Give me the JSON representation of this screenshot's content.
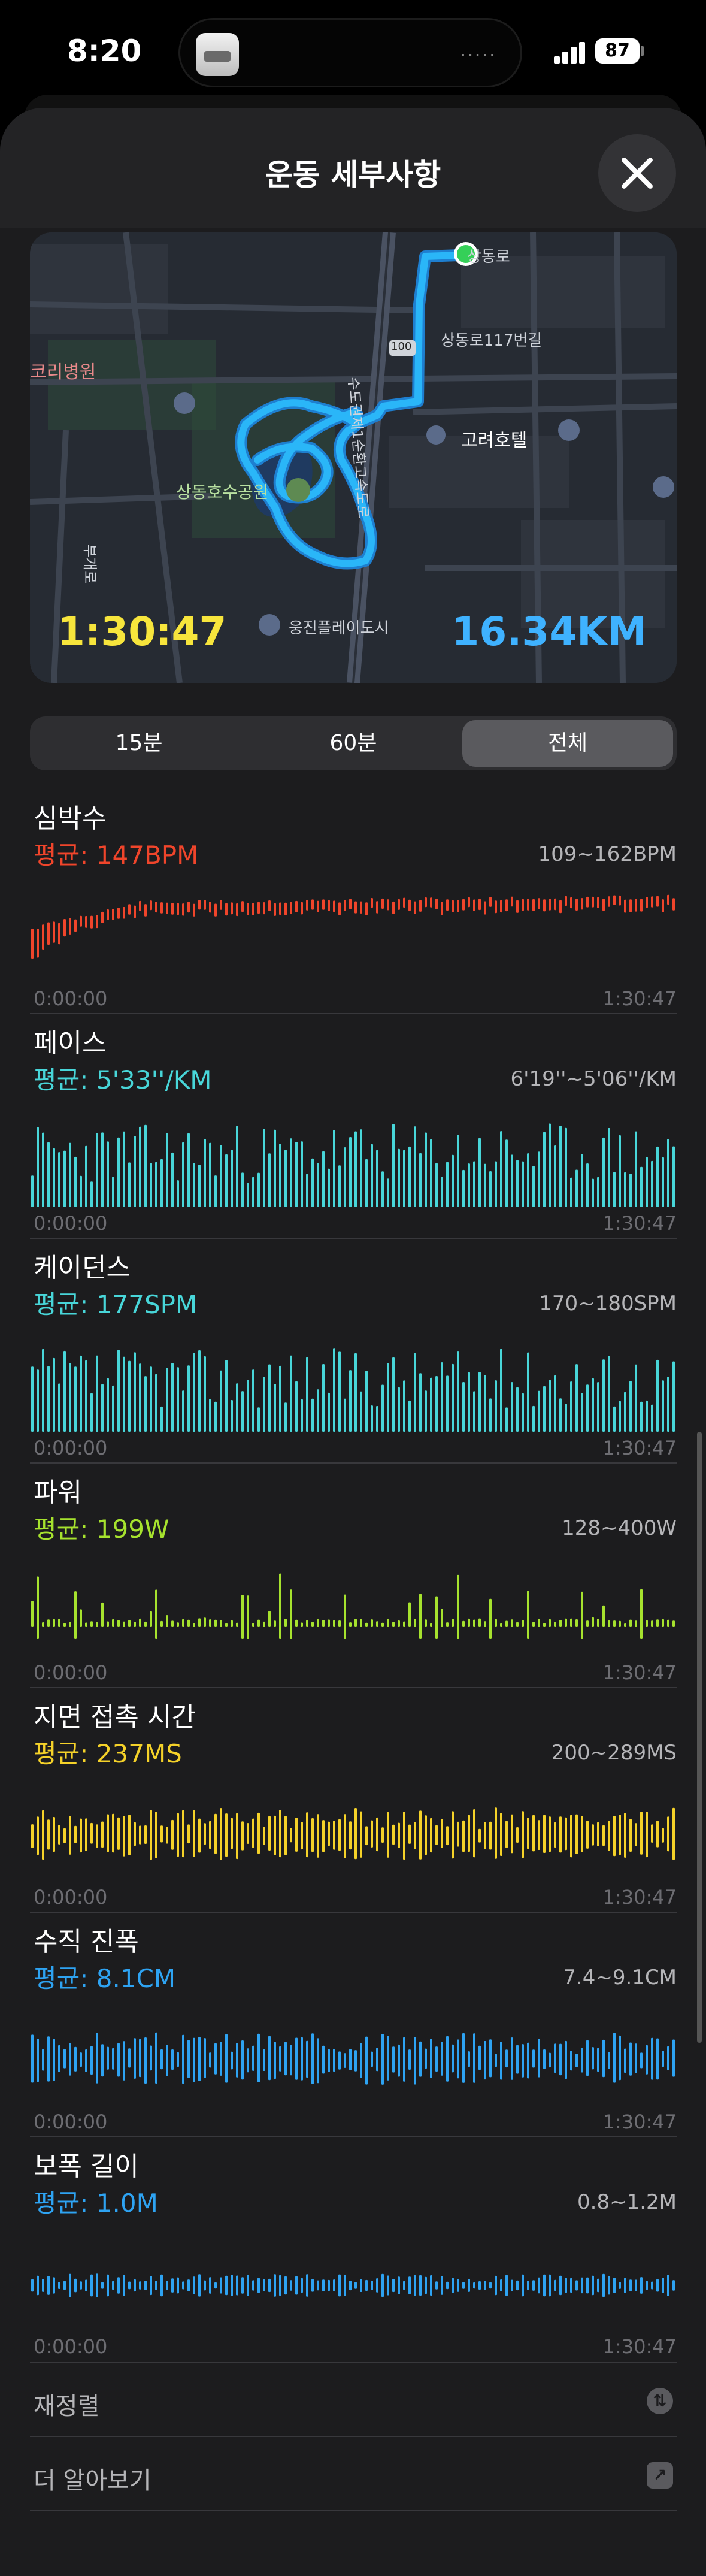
{
  "status_bar": {
    "time": "8:20",
    "battery": "87",
    "island_indicator": "·····"
  },
  "header": {
    "title": "운동 세부사항",
    "close_icon": "close-icon"
  },
  "map": {
    "time": "1:30:47",
    "distance": "16.34KM",
    "labels": {
      "hospital": "코리병원",
      "lake": "상동호수공원",
      "hotel": "고려호텔",
      "road_117": "상동로117번길",
      "road": "상동로",
      "building": "웅진플레이도시",
      "route_no": "100",
      "vertical_road": "수도권제1순환고속도로",
      "side_road": "부개로"
    },
    "route_color": "#21b0f5",
    "start_color": "#35d058"
  },
  "segmented": {
    "items": [
      "15분",
      "60분",
      "전체"
    ],
    "selected": "전체"
  },
  "metrics": [
    {
      "title": "심박수",
      "avg": "평균: 147BPM",
      "range": "109~162BPM",
      "start": "0:00:00",
      "end": "1:30:47",
      "color": "#f0452b",
      "style": "heart",
      "seed": 11
    },
    {
      "title": "페이스",
      "avg": "평균: 5'33''/KM",
      "range": "6'19''~5'06''/KM",
      "start": "0:00:00",
      "end": "1:30:47",
      "color": "#48d6d9",
      "style": "bars",
      "seed": 23
    },
    {
      "title": "케이던스",
      "avg": "평균: 177SPM",
      "range": "170~180SPM",
      "start": "0:00:00",
      "end": "1:30:47",
      "color": "#48d6d9",
      "style": "bars",
      "seed": 37
    },
    {
      "title": "파워",
      "avg": "평균: 199W",
      "range": "128~400W",
      "start": "0:00:00",
      "end": "1:30:47",
      "color": "#a6e22e",
      "style": "spiky",
      "seed": 41
    },
    {
      "title": "지면 접촉 시간",
      "avg": "평균: 237MS",
      "range": "200~289MS",
      "start": "0:00:00",
      "end": "1:30:47",
      "color": "#f5d229",
      "style": "centered",
      "seed": 53
    },
    {
      "title": "수직 진폭",
      "avg": "평균: 8.1CM",
      "range": "7.4~9.1CM",
      "start": "0:00:00",
      "end": "1:30:47",
      "color": "#2ea3f2",
      "style": "centered",
      "seed": 67
    },
    {
      "title": "보폭 길이",
      "avg": "평균: 1.0M",
      "range": "0.8~1.2M",
      "start": "0:00:00",
      "end": "1:30:47",
      "color": "#2ea3f2",
      "style": "flat",
      "seed": 79
    }
  ],
  "rows": [
    {
      "label": "재정렬",
      "icon": "reorder-icon",
      "glyph": "⇅"
    },
    {
      "label": "더 알아보기",
      "icon": "external-link-icon",
      "glyph": "↗"
    }
  ]
}
